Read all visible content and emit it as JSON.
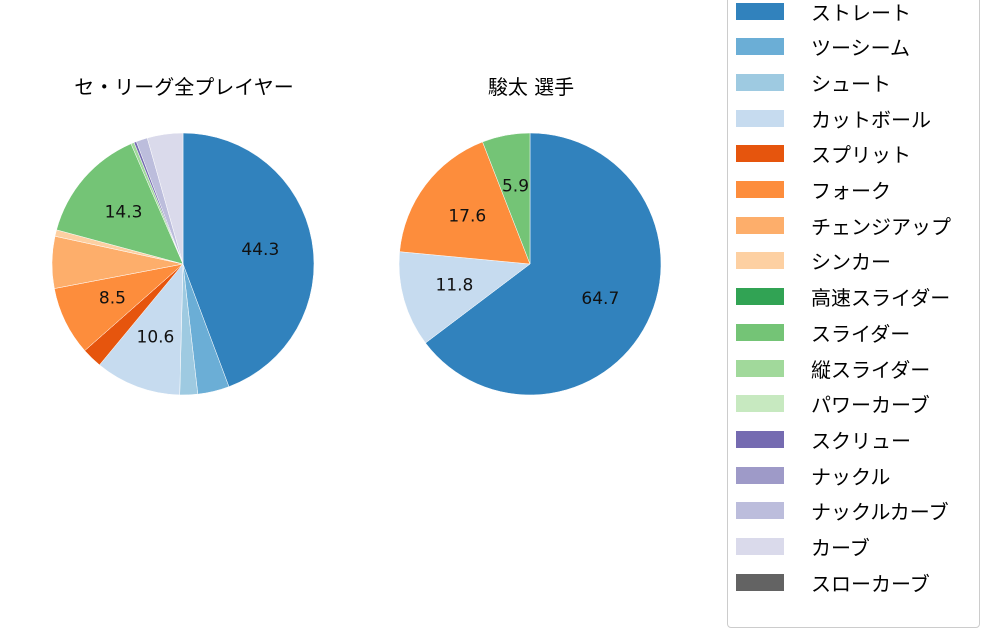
{
  "chart_data": [
    {
      "type": "pie",
      "title": "セ・リーグ全プレイヤー",
      "start_angle": 90,
      "direction": "clockwise",
      "center": [
        183,
        264
      ],
      "radius": 131,
      "slices": [
        {
          "label": "ストレート",
          "value": 44.3,
          "color": "#3182bd",
          "show_label": true
        },
        {
          "label": "ツーシーム",
          "value": 3.9,
          "color": "#6baed6",
          "show_label": false
        },
        {
          "label": "シュート",
          "value": 2.2,
          "color": "#9ecae1",
          "show_label": false
        },
        {
          "label": "カットボール",
          "value": 10.6,
          "color": "#c6dbef",
          "show_label": true
        },
        {
          "label": "スプリット",
          "value": 2.5,
          "color": "#e6550d",
          "show_label": false
        },
        {
          "label": "フォーク",
          "value": 8.5,
          "color": "#fd8d3c",
          "show_label": true
        },
        {
          "label": "チェンジアップ",
          "value": 6.4,
          "color": "#fdae6b",
          "show_label": false
        },
        {
          "label": "シンカー",
          "value": 0.8,
          "color": "#fdd0a2",
          "show_label": false
        },
        {
          "label": "スライダー",
          "value": 14.3,
          "color": "#74c476",
          "show_label": true
        },
        {
          "label": "縦スライダー",
          "value": 0.4,
          "color": "#a1d99b",
          "show_label": false
        },
        {
          "label": "スクリュー",
          "value": 0.3,
          "color": "#756bb1",
          "show_label": false
        },
        {
          "label": "ナックルカーブ",
          "value": 1.4,
          "color": "#bcbddc",
          "show_label": false
        },
        {
          "label": "カーブ",
          "value": 4.4,
          "color": "#dadaeb",
          "show_label": false
        }
      ]
    },
    {
      "type": "pie",
      "title": "駿太  選手",
      "start_angle": 90,
      "direction": "clockwise",
      "center": [
        530,
        264
      ],
      "radius": 131,
      "slices": [
        {
          "label": "ストレート",
          "value": 64.7,
          "color": "#3182bd",
          "show_label": true
        },
        {
          "label": "カットボール",
          "value": 11.8,
          "color": "#c6dbef",
          "show_label": true
        },
        {
          "label": "フォーク",
          "value": 17.6,
          "color": "#fd8d3c",
          "show_label": true
        },
        {
          "label": "スライダー",
          "value": 5.9,
          "color": "#74c476",
          "show_label": true
        }
      ]
    }
  ],
  "legend": {
    "position": "right",
    "items": [
      {
        "label": "ストレート",
        "color": "#3182bd"
      },
      {
        "label": "ツーシーム",
        "color": "#6baed6"
      },
      {
        "label": "シュート",
        "color": "#9ecae1"
      },
      {
        "label": "カットボール",
        "color": "#c6dbef"
      },
      {
        "label": "スプリット",
        "color": "#e6550d"
      },
      {
        "label": "フォーク",
        "color": "#fd8d3c"
      },
      {
        "label": "チェンジアップ",
        "color": "#fdae6b"
      },
      {
        "label": "シンカー",
        "color": "#fdd0a2"
      },
      {
        "label": "高速スライダー",
        "color": "#31a354"
      },
      {
        "label": "スライダー",
        "color": "#74c476"
      },
      {
        "label": "縦スライダー",
        "color": "#a1d99b"
      },
      {
        "label": "パワーカーブ",
        "color": "#c7e9c0"
      },
      {
        "label": "スクリュー",
        "color": "#756bb1"
      },
      {
        "label": "ナックル",
        "color": "#9e9ac8"
      },
      {
        "label": "ナックルカーブ",
        "color": "#bcbddc"
      },
      {
        "label": "カーブ",
        "color": "#dadaeb"
      },
      {
        "label": "スローカーブ",
        "color": "#636363"
      }
    ]
  }
}
